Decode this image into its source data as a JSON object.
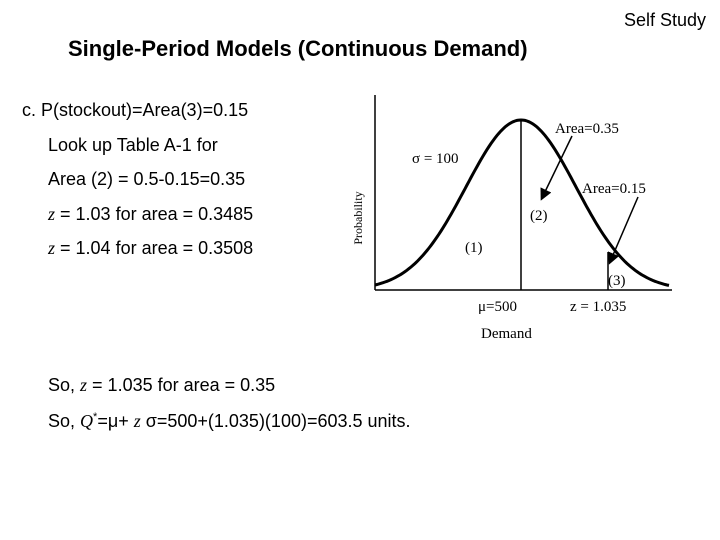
{
  "header": {
    "tag": "Self Study",
    "title": "Single-Period Models (Continuous Demand)"
  },
  "body": {
    "lines": [
      [
        "c. P(stockout)=Area(3)=0.15"
      ],
      [
        "Look up Table A-1 for"
      ],
      [
        "Area (2) = 0.5-0.15=0.35"
      ],
      [
        "z",
        " = 1.03 for area = 0.3485"
      ],
      [
        "z",
        " = 1.04 for area = 0.3508"
      ]
    ],
    "conclusion": [
      [
        "So, ",
        "z",
        " = 1.035 for area = 0.35"
      ],
      [
        "So, ",
        "Q",
        "*",
        "=μ+ ",
        "z",
        " σ=500+(1.035)(100)=603.5 units."
      ]
    ]
  },
  "figure": {
    "area_center": "Area=0.35",
    "sigma": "σ = 100",
    "area_tail": "Area=0.15",
    "region_2": "(2)",
    "region_1": "(1)",
    "region_3": "(3)",
    "mean": "μ=500",
    "z_value": "z = 1.035",
    "x_label": "Demand",
    "y_label": "Probability"
  }
}
